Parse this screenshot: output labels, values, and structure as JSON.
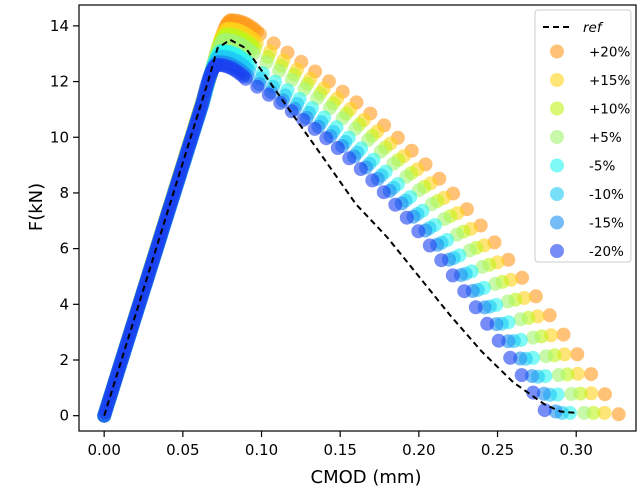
{
  "chart_data": {
    "type": "scatter",
    "xlabel": "CMOD (mm)",
    "ylabel": "F(kN)",
    "xlim": [
      -0.016,
      0.338
    ],
    "ylim": [
      -0.55,
      14.75
    ],
    "x_ticks": [
      "0.00",
      "0.05",
      "0.10",
      "0.15",
      "0.20",
      "0.25",
      "0.30"
    ],
    "y_ticks": [
      "0",
      "2",
      "4",
      "6",
      "8",
      "10",
      "12",
      "14"
    ],
    "grid": false,
    "legend_position": "top-right",
    "reference": {
      "name": "ref",
      "style": "dashed",
      "color": "#000000",
      "x": [
        0.0,
        0.066,
        0.072,
        0.08,
        0.09,
        0.1,
        0.12,
        0.14,
        0.16,
        0.18,
        0.2,
        0.22,
        0.24,
        0.26,
        0.28,
        0.29,
        0.3
      ],
      "y": [
        0.0,
        12.0,
        13.2,
        13.5,
        13.2,
        12.4,
        10.8,
        9.2,
        7.6,
        6.4,
        5.0,
        3.6,
        2.3,
        1.2,
        0.4,
        0.15,
        0.1
      ]
    },
    "series": [
      {
        "name": "+20%",
        "color": "#ff9a1a",
        "peak": [
          0.081,
          14.2
        ],
        "end": [
          0.327,
          0.05
        ]
      },
      {
        "name": "+15%",
        "color": "#ffd21a",
        "peak": [
          0.079,
          13.9
        ],
        "end": [
          0.318,
          0.1
        ]
      },
      {
        "name": "+10%",
        "color": "#bff51a",
        "peak": [
          0.078,
          13.7
        ],
        "end": [
          0.311,
          0.1
        ]
      },
      {
        "name": "+5%",
        "color": "#a3f571",
        "peak": [
          0.077,
          13.5
        ],
        "end": [
          0.305,
          0.1
        ]
      },
      {
        "name": "-5%",
        "color": "#2af5ee",
        "peak": [
          0.075,
          13.1
        ],
        "end": [
          0.296,
          0.1
        ]
      },
      {
        "name": "-10%",
        "color": "#1ecaf5",
        "peak": [
          0.074,
          12.9
        ],
        "end": [
          0.291,
          0.1
        ]
      },
      {
        "name": "-15%",
        "color": "#1a90f0",
        "peak": [
          0.073,
          12.7
        ],
        "end": [
          0.287,
          0.15
        ]
      },
      {
        "name": "-20%",
        "color": "#1a3ff0",
        "peak": [
          0.072,
          12.6
        ],
        "end": [
          0.28,
          0.2
        ]
      }
    ]
  }
}
